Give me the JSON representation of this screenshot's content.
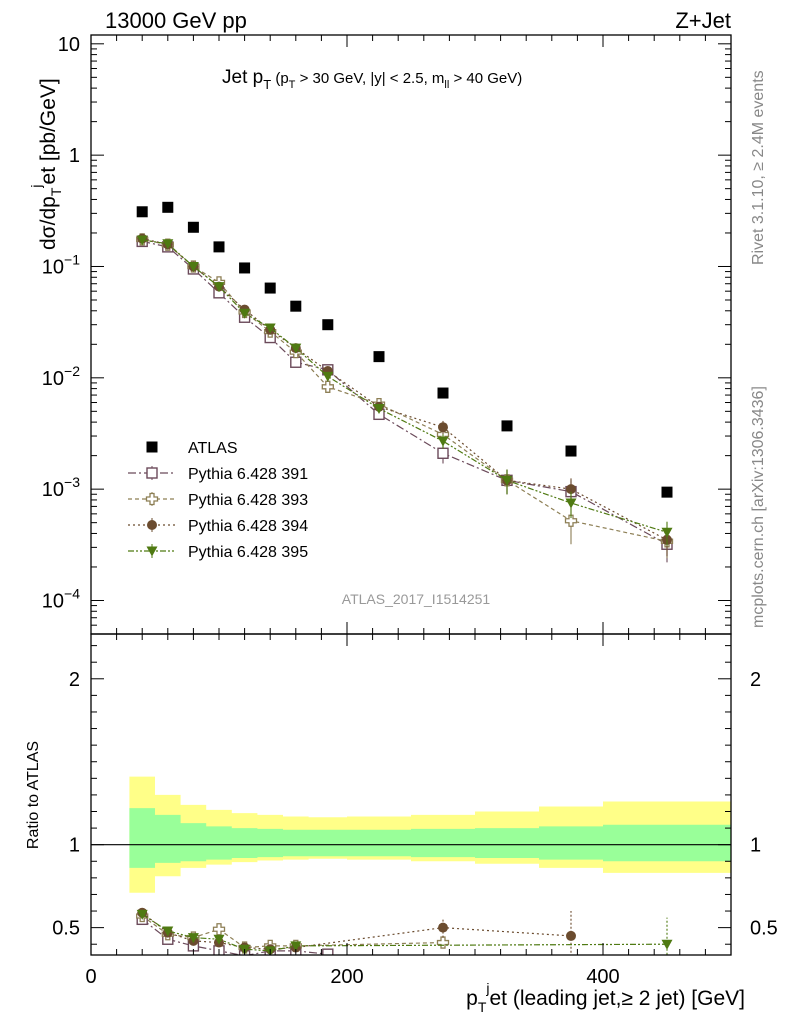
{
  "header": {
    "left": "13000 GeV pp",
    "right": "Z+Jet"
  },
  "title": {
    "main": "Jet p",
    "main_sub": "T",
    "cut_open": " (p",
    "cut_sub1": "T",
    "cut_mid": " > 30 GeV, |y| < 2.5, m",
    "cut_sub2": "ll",
    "cut_end": " > 40 GeV)"
  },
  "side_labels": {
    "rivet": "Rivet 3.1.10, ≥ 2.4M events",
    "mcplots": "mcplots.cern.ch [arXiv:1306.3436]"
  },
  "analysis_tag": "ATLAS_2017_I1514251",
  "colors": {
    "data": "#000000",
    "s391": "#6b4a5a",
    "s393": "#8d7f55",
    "s394": "#6b4c2f",
    "s395": "#4f7a12",
    "band_inner": "#99ff99",
    "band_outer": "#ffff88"
  },
  "chart_data": [
    {
      "type": "scatter",
      "yscale": "log",
      "ylabel": {
        "p1": "dσ/dp",
        "sub": "T",
        "sup": "j",
        "p2": "et [pb/GeV]"
      },
      "xlim": [
        0,
        500
      ],
      "ylim": [
        5e-05,
        12
      ],
      "yticks": [
        {
          "v": 0.0001,
          "base": "10",
          "exp": "−4"
        },
        {
          "v": 0.001,
          "base": "10",
          "exp": "−3"
        },
        {
          "v": 0.01,
          "base": "10",
          "exp": "−2"
        },
        {
          "v": 0.1,
          "base": "10",
          "exp": "−1"
        },
        {
          "v": 1,
          "base": "1",
          "exp": ""
        },
        {
          "v": 10,
          "base": "10",
          "exp": ""
        }
      ],
      "legend_position": "lower-left",
      "series": [
        {
          "key": "data",
          "name": "ATLAS",
          "marker": "square",
          "dash": "",
          "x": [
            40,
            60,
            80,
            100,
            120,
            140,
            160,
            185,
            225,
            275,
            325,
            375,
            450
          ],
          "y": [
            0.31,
            0.34,
            0.225,
            0.15,
            0.097,
            0.064,
            0.044,
            0.03,
            0.0155,
            0.0073,
            0.0037,
            0.0022,
            0.00094
          ]
        },
        {
          "key": "s391",
          "name": "Pythia 6.428 391",
          "marker": "open-square",
          "dash": "8,3,2,3",
          "x": [
            40,
            60,
            80,
            100,
            120,
            140,
            160,
            185,
            225,
            275,
            325,
            375,
            450
          ],
          "y": [
            0.168,
            0.15,
            0.095,
            0.058,
            0.035,
            0.023,
            0.0138,
            0.0118,
            0.0047,
            0.0021,
            0.0012,
            0.00095,
            0.00032
          ],
          "err": [
            0.005,
            0.004,
            0.003,
            0.002,
            0.0015,
            0.001,
            0.0008,
            0.0008,
            0.0004,
            0.0004,
            0.0003,
            0.00025,
            0.0001
          ]
        },
        {
          "key": "s393",
          "name": "Pythia 6.428 393",
          "marker": "open-cross",
          "dash": "4,3",
          "x": [
            40,
            60,
            80,
            100,
            120,
            140,
            160,
            185,
            225,
            275,
            325,
            375,
            450
          ],
          "y": [
            0.175,
            0.157,
            0.1,
            0.072,
            0.039,
            0.026,
            0.017,
            0.0083,
            0.0058,
            0.0031,
            0.0012,
            0.00052,
            0.00034
          ],
          "err": [
            0.005,
            0.004,
            0.003,
            0.002,
            0.0015,
            0.001,
            0.0008,
            0.0008,
            0.0004,
            0.0005,
            0.0003,
            0.0002,
            0.0001
          ]
        },
        {
          "key": "s394",
          "name": "Pythia 6.428 394",
          "marker": "circle",
          "dash": "2,3",
          "x": [
            40,
            60,
            80,
            100,
            120,
            140,
            160,
            185,
            225,
            275,
            325,
            375,
            450
          ],
          "y": [
            0.178,
            0.158,
            0.1,
            0.066,
            0.041,
            0.027,
            0.0185,
            0.0115,
            0.0055,
            0.0036,
            0.0012,
            0.001,
            0.00035
          ],
          "err": [
            0.005,
            0.004,
            0.003,
            0.002,
            0.0015,
            0.001,
            0.0008,
            0.0008,
            0.0004,
            0.0005,
            0.0003,
            0.00025,
            0.0001
          ]
        },
        {
          "key": "s395",
          "name": "Pythia 6.428 395",
          "marker": "triangle-down",
          "dash": "6,2,2,2,2,2",
          "x": [
            40,
            60,
            80,
            100,
            120,
            140,
            160,
            185,
            225,
            275,
            325,
            375,
            450
          ],
          "y": [
            0.173,
            0.16,
            0.1,
            0.066,
            0.038,
            0.028,
            0.0185,
            0.0103,
            0.0053,
            0.0027,
            0.0012,
            0.00075,
            0.00041
          ],
          "err": [
            0.005,
            0.004,
            0.003,
            0.002,
            0.0015,
            0.001,
            0.0008,
            0.0008,
            0.0004,
            0.0004,
            0.0003,
            0.0002,
            0.0001
          ]
        }
      ]
    },
    {
      "type": "scatter",
      "ylabel": "Ratio to ATLAS",
      "xlabel": {
        "p1": "p",
        "sub": "T",
        "sup": "j",
        "p2": "et (leading jet,≥ 2 jet) [GeV]"
      },
      "xlim": [
        0,
        500
      ],
      "ylim": [
        0.335,
        2.27
      ],
      "xticks": [
        0,
        200,
        400
      ],
      "yticks": [
        0.5,
        1,
        2
      ],
      "bands": {
        "edges": [
          30,
          50,
          70,
          90,
          110,
          130,
          150,
          170,
          200,
          250,
          300,
          350,
          400,
          500
        ],
        "inner_lo": [
          0.86,
          0.89,
          0.9,
          0.91,
          0.92,
          0.925,
          0.93,
          0.93,
          0.93,
          0.925,
          0.92,
          0.91,
          0.9
        ],
        "inner_hi": [
          1.22,
          1.18,
          1.13,
          1.11,
          1.1,
          1.095,
          1.09,
          1.09,
          1.09,
          1.095,
          1.1,
          1.11,
          1.12
        ],
        "outer_lo": [
          0.71,
          0.81,
          0.86,
          0.88,
          0.895,
          0.905,
          0.91,
          0.915,
          0.91,
          0.9,
          0.885,
          0.86,
          0.83
        ],
        "outer_hi": [
          1.41,
          1.3,
          1.24,
          1.21,
          1.19,
          1.18,
          1.17,
          1.165,
          1.17,
          1.18,
          1.2,
          1.23,
          1.26
        ]
      },
      "series": [
        {
          "key": "s391",
          "marker": "open-square",
          "dash": "8,3,2,3",
          "x": [
            40,
            60,
            80,
            100,
            120,
            140,
            160,
            185
          ],
          "y": [
            0.55,
            0.43,
            0.39,
            0.36,
            0.33,
            0.36,
            0.36,
            0.34
          ],
          "err": [
            0.02,
            0.02,
            0.02,
            0.02,
            0.02,
            0.02,
            0.02,
            0.02
          ]
        },
        {
          "key": "s393",
          "marker": "open-cross",
          "dash": "4,3",
          "x": [
            40,
            60,
            80,
            100,
            120,
            140,
            160,
            275
          ],
          "y": [
            0.57,
            0.46,
            0.44,
            0.49,
            0.38,
            0.39,
            0.39,
            0.41
          ],
          "err": [
            0.02,
            0.02,
            0.02,
            0.03,
            0.02,
            0.02,
            0.02,
            0.03
          ]
        },
        {
          "key": "s394",
          "marker": "circle",
          "dash": "2,3",
          "x": [
            40,
            60,
            80,
            100,
            120,
            140,
            160,
            275,
            375
          ],
          "y": [
            0.59,
            0.47,
            0.42,
            0.41,
            0.38,
            0.37,
            0.38,
            0.5,
            0.45
          ],
          "err": [
            0.02,
            0.02,
            0.02,
            0.02,
            0.02,
            0.02,
            0.02,
            0.06,
            0.15
          ]
        },
        {
          "key": "s395",
          "marker": "triangle-down",
          "dash": "6,2,2,2,2,2",
          "x": [
            40,
            60,
            80,
            100,
            120,
            140,
            160,
            450
          ],
          "y": [
            0.58,
            0.48,
            0.44,
            0.43,
            0.37,
            0.36,
            0.39,
            0.4
          ],
          "err": [
            0.02,
            0.02,
            0.02,
            0.02,
            0.02,
            0.02,
            0.02,
            0.16
          ]
        }
      ]
    }
  ]
}
